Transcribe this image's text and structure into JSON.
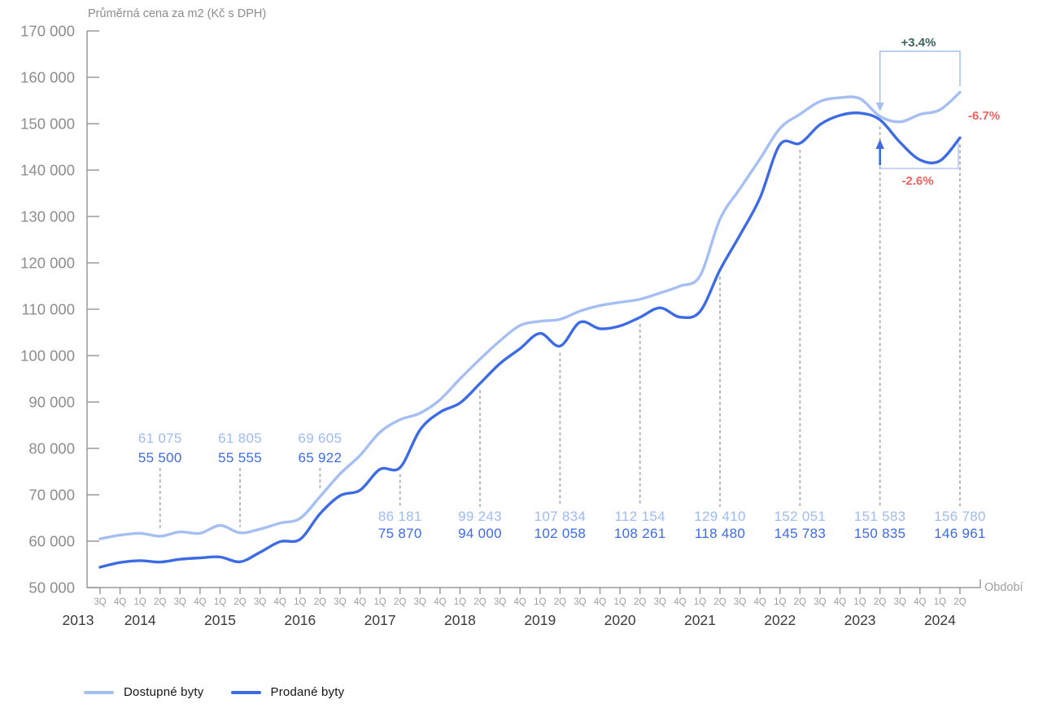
{
  "title": "Průměrná cena za m2 (Kč s DPH)",
  "x_axis_title": "Období",
  "colors": {
    "available_line": "#a6bff2",
    "sold_line": "#3d6be4",
    "available_label": "#9fbbf3",
    "sold_label": "#3d6be4",
    "positive_annotation": "#3c655b",
    "negative_annotation": "#f2625f",
    "axis": "#9a9a9a",
    "axis_text": "#8d8d8d",
    "quarter_text": "#9e9e9e",
    "year_text": "#3b3b3b",
    "dotted_line": "#b3b3b3"
  },
  "legend": {
    "items": [
      {
        "label": "Dostupné byty",
        "color": "#a6bff2"
      },
      {
        "label": "Prodané byty",
        "color": "#3d6be4"
      }
    ]
  },
  "chart_data": {
    "type": "line",
    "title": "Průměrná cena za m2 (Kč s DPH)",
    "xlabel": "Období",
    "ylabel": "",
    "ylim": [
      50000,
      170000
    ],
    "y_tick_step": 10000,
    "grid": false,
    "legend_position": "bottom-left",
    "x_quarter_labels": [
      "3Q",
      "4Q",
      "1Q",
      "2Q",
      "3Q",
      "4Q",
      "1Q",
      "2Q",
      "3Q",
      "4Q",
      "1Q",
      "2Q",
      "3Q",
      "4Q",
      "1Q",
      "2Q",
      "3Q",
      "4Q",
      "1Q",
      "2Q",
      "3Q",
      "4Q",
      "1Q",
      "2Q",
      "3Q",
      "4Q",
      "1Q",
      "2Q",
      "3Q",
      "4Q",
      "1Q",
      "2Q",
      "3Q",
      "4Q",
      "1Q",
      "2Q",
      "3Q",
      "4Q",
      "1Q",
      "2Q",
      "3Q",
      "4Q",
      "1Q",
      "2Q"
    ],
    "x_year_groups": [
      {
        "label": "2013",
        "count": 2
      },
      {
        "label": "2014",
        "count": 4
      },
      {
        "label": "2015",
        "count": 4
      },
      {
        "label": "2016",
        "count": 4
      },
      {
        "label": "2017",
        "count": 4
      },
      {
        "label": "2018",
        "count": 4
      },
      {
        "label": "2019",
        "count": 4
      },
      {
        "label": "2020",
        "count": 4
      },
      {
        "label": "2021",
        "count": 4
      },
      {
        "label": "2022",
        "count": 4
      },
      {
        "label": "2023",
        "count": 4
      },
      {
        "label": "2024",
        "count": 2
      }
    ],
    "series": [
      {
        "name": "Dostupné byty",
        "color": "#a6bff2",
        "values": [
          60500,
          61300,
          61700,
          61075,
          62000,
          61700,
          63400,
          61805,
          62600,
          63900,
          64900,
          69605,
          74500,
          78500,
          83500,
          86181,
          87600,
          90500,
          95000,
          99243,
          103200,
          106500,
          107400,
          107834,
          109600,
          110800,
          111500,
          112154,
          113500,
          115000,
          117200,
          129410,
          136000,
          142400,
          149000,
          152051,
          154800,
          155600,
          155400,
          151583,
          150400,
          152000,
          153000,
          156780
        ]
      },
      {
        "name": "Prodané byty",
        "color": "#3d6be4",
        "values": [
          54400,
          55400,
          55800,
          55500,
          56100,
          56400,
          56600,
          55555,
          57600,
          59900,
          60400,
          65922,
          69800,
          71000,
          75500,
          75870,
          84000,
          87800,
          89800,
          94000,
          98300,
          101500,
          104800,
          102058,
          107200,
          105800,
          106400,
          108261,
          110300,
          108300,
          109500,
          118480,
          126000,
          134000,
          145500,
          145783,
          149800,
          151800,
          152300,
          150835,
          146000,
          142200,
          142000,
          146961
        ]
      }
    ],
    "labeled_points": [
      {
        "index": 3,
        "quarter": "2014 2Q",
        "available": "61 075",
        "sold": "55 500",
        "label_position": "above"
      },
      {
        "index": 7,
        "quarter": "2015 2Q",
        "available": "61 805",
        "sold": "55 555",
        "label_position": "above"
      },
      {
        "index": 11,
        "quarter": "2016 2Q",
        "available": "69 605",
        "sold": "65 922",
        "label_position": "above"
      },
      {
        "index": 15,
        "quarter": "2017 2Q",
        "available": "86 181",
        "sold": "75 870",
        "label_position": "below"
      },
      {
        "index": 19,
        "quarter": "2018 2Q",
        "available": "99 243",
        "sold": "94 000",
        "label_position": "below"
      },
      {
        "index": 23,
        "quarter": "2019 2Q",
        "available": "107 834",
        "sold": "102 058",
        "label_position": "below"
      },
      {
        "index": 27,
        "quarter": "2020 2Q",
        "available": "112 154",
        "sold": "108 261",
        "label_position": "below"
      },
      {
        "index": 31,
        "quarter": "2021 2Q",
        "available": "129 410",
        "sold": "118 480",
        "label_position": "below"
      },
      {
        "index": 35,
        "quarter": "2022 2Q",
        "available": "152 051",
        "sold": "145 783",
        "label_position": "below"
      },
      {
        "index": 39,
        "quarter": "2023 2Q",
        "available": "151 583",
        "sold": "150 835",
        "label_position": "below"
      },
      {
        "index": 43,
        "quarter": "2024 2Q",
        "available": "156 780",
        "sold": "146 961",
        "label_position": "below"
      }
    ],
    "annotations": {
      "available_change_label": "+3.4%",
      "sold_change_label": "-2.6%",
      "gap_label": "-6.7%"
    }
  }
}
